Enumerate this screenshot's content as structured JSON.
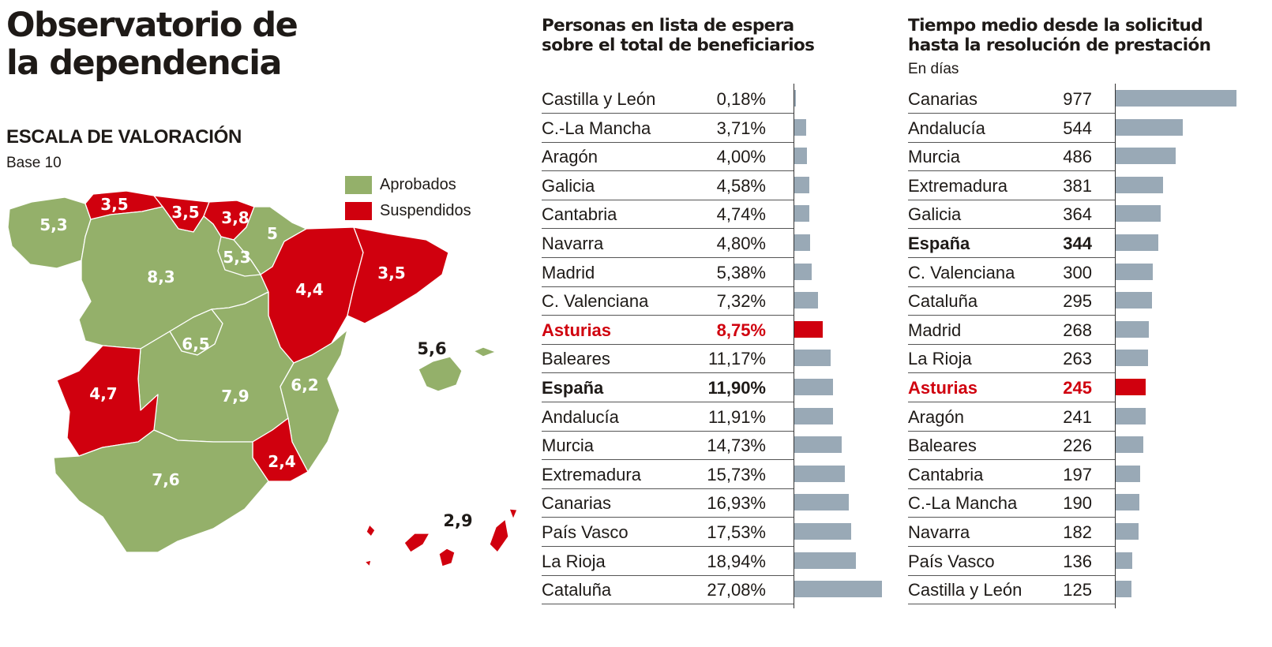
{
  "title_line1": "Observatorio de",
  "title_line2": "la dependencia",
  "map_section": {
    "title": "ESCALA DE VALORACIÓN",
    "subtitle": "Base 10",
    "legend": [
      {
        "label": "Aprobados",
        "color": "#94b06a"
      },
      {
        "label": "Suspendidos",
        "color": "#d0000e"
      }
    ],
    "regions": [
      {
        "name": "Galicia",
        "score": "5,3",
        "status": "aprobado"
      },
      {
        "name": "Asturias",
        "score": "3,5",
        "status": "suspendido"
      },
      {
        "name": "Cantabria",
        "score": "3,5",
        "status": "suspendido"
      },
      {
        "name": "País Vasco",
        "score": "3,8",
        "status": "suspendido"
      },
      {
        "name": "Navarra",
        "score": "5",
        "status": "aprobado"
      },
      {
        "name": "Castilla y León",
        "score": "8,3",
        "status": "aprobado"
      },
      {
        "name": "La Rioja",
        "score": "5,3",
        "status": "aprobado"
      },
      {
        "name": "Aragón",
        "score": "4,4",
        "status": "suspendido"
      },
      {
        "name": "Cataluña",
        "score": "3,5",
        "status": "suspendido"
      },
      {
        "name": "Madrid",
        "score": "6,5",
        "status": "aprobado"
      },
      {
        "name": "Extremadura",
        "score": "4,7",
        "status": "suspendido"
      },
      {
        "name": "C.-La Mancha",
        "score": "7,9",
        "status": "aprobado"
      },
      {
        "name": "C. Valenciana",
        "score": "6,2",
        "status": "aprobado"
      },
      {
        "name": "Murcia",
        "score": "2,4",
        "status": "suspendido"
      },
      {
        "name": "Andalucía",
        "score": "7,6",
        "status": "aprobado"
      },
      {
        "name": "Baleares",
        "score": "5,6",
        "status": "aprobado"
      },
      {
        "name": "Canarias",
        "score": "2,9",
        "status": "suspendido"
      }
    ]
  },
  "chart_data": [
    {
      "type": "bar",
      "title_line1": "Personas en lista de espera",
      "title_line2": "sobre el total de beneficiarios",
      "unit": "",
      "categories": [
        "Castilla y León",
        "C.-La Mancha",
        "Aragón",
        "Galicia",
        "Cantabria",
        "Navarra",
        "Madrid",
        "C. Valenciana",
        "Asturias",
        "Baleares",
        "España",
        "Andalucía",
        "Murcia",
        "Extremadura",
        "Canarias",
        "País Vasco",
        "La Rioja",
        "Cataluña"
      ],
      "values": [
        0.18,
        3.71,
        4.0,
        4.58,
        4.74,
        4.8,
        5.38,
        7.32,
        8.75,
        11.17,
        11.9,
        11.91,
        14.73,
        15.73,
        16.93,
        17.53,
        18.94,
        27.08
      ],
      "value_labels": [
        "0,18%",
        "3,71%",
        "4,00%",
        "4,58%",
        "4,74%",
        "4,80%",
        "5,38%",
        "7,32%",
        "8,75%",
        "11,17%",
        "11,90%",
        "11,91%",
        "14,73%",
        "15,73%",
        "16,93%",
        "17,53%",
        "18,94%",
        "27,08%"
      ],
      "highlight": "Asturias",
      "total": "España",
      "bar_color": "#99a9b6",
      "highlight_color": "#d0000e",
      "xlim": [
        0,
        27.08
      ]
    },
    {
      "type": "bar",
      "title_line1": "Tiempo medio desde la solicitud",
      "title_line2": "hasta la resolución de prestación",
      "unit": "En días",
      "categories": [
        "Canarias",
        "Andalucía",
        "Murcia",
        "Extremadura",
        "Galicia",
        "España",
        "C. Valenciana",
        "Cataluña",
        "Madrid",
        "La Rioja",
        "Asturias",
        "Aragón",
        "Baleares",
        "Cantabria",
        "C.-La Mancha",
        "Navarra",
        "País Vasco",
        "Castilla y León"
      ],
      "values": [
        977,
        544,
        486,
        381,
        364,
        344,
        300,
        295,
        268,
        263,
        245,
        241,
        226,
        197,
        190,
        182,
        136,
        125
      ],
      "value_labels": [
        "977",
        "544",
        "486",
        "381",
        "364",
        "344",
        "300",
        "295",
        "268",
        "263",
        "245",
        "241",
        "226",
        "197",
        "190",
        "182",
        "136",
        "125"
      ],
      "highlight": "Asturias",
      "total": "España",
      "bar_color": "#99a9b6",
      "highlight_color": "#d0000e",
      "xlim": [
        0,
        977
      ]
    }
  ]
}
